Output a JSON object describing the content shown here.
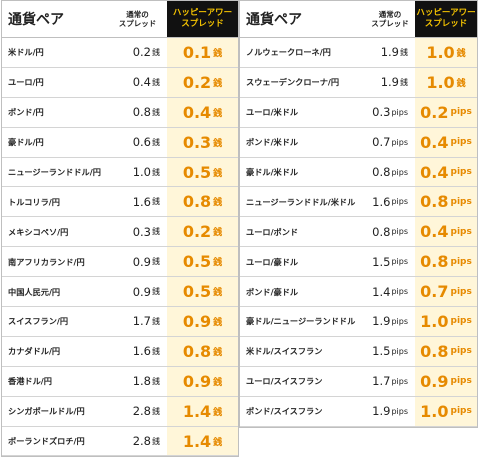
{
  "left_table": {
    "header": {
      "pair": "通貨ペア",
      "normal": "通常の\nスプレッド",
      "happy": "ハッピーアワー\nスプレッド"
    },
    "unit": "銭",
    "rows": [
      {
        "pair": "米ドル/円",
        "normal": "0.2",
        "happy": "0.1"
      },
      {
        "pair": "ユーロ/円",
        "normal": "0.4",
        "happy": "0.2"
      },
      {
        "pair": "ポンド/円",
        "normal": "0.8",
        "happy": "0.4"
      },
      {
        "pair": "豪ドル/円",
        "normal": "0.6",
        "happy": "0.3"
      },
      {
        "pair": "ニュージーランドドル/円",
        "normal": "1.0",
        "happy": "0.5"
      },
      {
        "pair": "トルコリラ/円",
        "normal": "1.6",
        "happy": "0.8"
      },
      {
        "pair": "メキシコペソ/円",
        "normal": "0.3",
        "happy": "0.2"
      },
      {
        "pair": "南アフリカランド/円",
        "normal": "0.9",
        "happy": "0.5"
      },
      {
        "pair": "中国人民元/円",
        "normal": "0.9",
        "happy": "0.5"
      },
      {
        "pair": "スイスフラン/円",
        "normal": "1.7",
        "happy": "0.9"
      },
      {
        "pair": "カナダドル/円",
        "normal": "1.6",
        "happy": "0.8"
      },
      {
        "pair": "香港ドル/円",
        "normal": "1.8",
        "happy": "0.9"
      },
      {
        "pair": "シンガポールドル/円",
        "normal": "2.8",
        "happy": "1.4"
      },
      {
        "pair": "ポーランドズロチ/円",
        "normal": "2.8",
        "happy": "1.4"
      }
    ]
  },
  "right_table": {
    "header": {
      "pair": "通貨ペア",
      "normal": "通常の\nスプレッド",
      "happy": "ハッピーアワー\nスプレッド"
    },
    "rows": [
      {
        "pair": "ノルウェークローネ/円",
        "normal": "1.9",
        "normal_unit": "銭",
        "happy": "1.0",
        "happy_unit": "銭"
      },
      {
        "pair": "スウェーデンクローナ/円",
        "normal": "1.9",
        "normal_unit": "銭",
        "happy": "1.0",
        "happy_unit": "銭"
      },
      {
        "pair": "ユーロ/米ドル",
        "normal": "0.3",
        "normal_unit": "pips",
        "happy": "0.2",
        "happy_unit": "pips"
      },
      {
        "pair": "ポンド/米ドル",
        "normal": "0.7",
        "normal_unit": "pips",
        "happy": "0.4",
        "happy_unit": "pips"
      },
      {
        "pair": "豪ドル/米ドル",
        "normal": "0.8",
        "normal_unit": "pips",
        "happy": "0.4",
        "happy_unit": "pips"
      },
      {
        "pair": "ニュージーランドドル/米ドル",
        "normal": "1.6",
        "normal_unit": "pips",
        "happy": "0.8",
        "happy_unit": "pips"
      },
      {
        "pair": "ユーロ/ポンド",
        "normal": "0.8",
        "normal_unit": "pips",
        "happy": "0.4",
        "happy_unit": "pips"
      },
      {
        "pair": "ユーロ/豪ドル",
        "normal": "1.5",
        "normal_unit": "pips",
        "happy": "0.8",
        "happy_unit": "pips"
      },
      {
        "pair": "ポンド/豪ドル",
        "normal": "1.4",
        "normal_unit": "pips",
        "happy": "0.7",
        "happy_unit": "pips"
      },
      {
        "pair": "豪ドル/ニュージーランドドル",
        "normal": "1.9",
        "normal_unit": "pips",
        "happy": "1.0",
        "happy_unit": "pips"
      },
      {
        "pair": "米ドル/スイスフラン",
        "normal": "1.5",
        "normal_unit": "pips",
        "happy": "0.8",
        "happy_unit": "pips"
      },
      {
        "pair": "ユーロ/スイスフラン",
        "normal": "1.7",
        "normal_unit": "pips",
        "happy": "0.9",
        "happy_unit": "pips"
      },
      {
        "pair": "ポンド/スイスフラン",
        "normal": "1.9",
        "normal_unit": "pips",
        "happy": "1.0",
        "happy_unit": "pips"
      }
    ]
  }
}
